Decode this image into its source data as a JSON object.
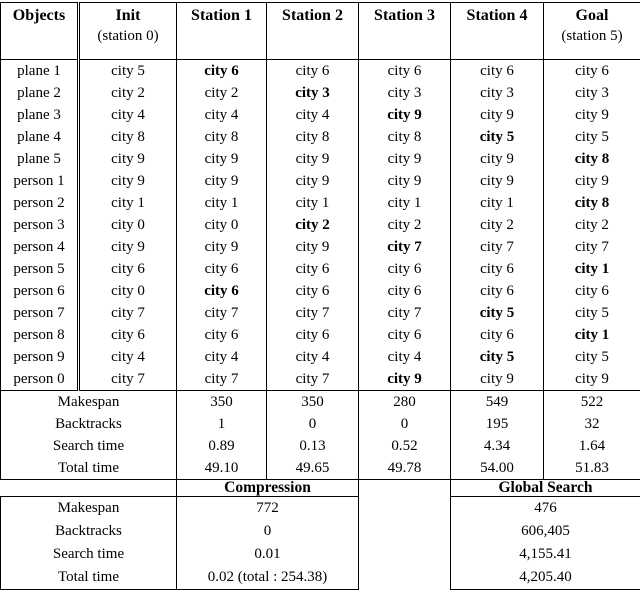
{
  "page": {
    "background": "#ffffff",
    "line_color": "#000000",
    "text_color": "#000000"
  },
  "main_table": {
    "header": {
      "columns": [
        {
          "label": "Objects",
          "sub": ""
        },
        {
          "label": "Init",
          "sub": "(station 0)"
        },
        {
          "label": "Station 1",
          "sub": ""
        },
        {
          "label": "Station 2",
          "sub": ""
        },
        {
          "label": "Station 3",
          "sub": ""
        },
        {
          "label": "Station 4",
          "sub": ""
        },
        {
          "label": "Goal",
          "sub": "(station 5)"
        }
      ]
    },
    "object_rows": [
      {
        "object": "plane 1",
        "cells": [
          "city 5",
          "city 6",
          "city 6",
          "city 6",
          "city 6",
          "city 6"
        ],
        "bold": [
          1
        ]
      },
      {
        "object": "plane 2",
        "cells": [
          "city 2",
          "city 2",
          "city 3",
          "city 3",
          "city 3",
          "city 3"
        ],
        "bold": [
          2
        ]
      },
      {
        "object": "plane 3",
        "cells": [
          "city 4",
          "city 4",
          "city 4",
          "city 9",
          "city 9",
          "city 9"
        ],
        "bold": [
          3
        ]
      },
      {
        "object": "plane 4",
        "cells": [
          "city 8",
          "city 8",
          "city 8",
          "city 8",
          "city 5",
          "city 5"
        ],
        "bold": [
          4
        ]
      },
      {
        "object": "plane 5",
        "cells": [
          "city 9",
          "city 9",
          "city 9",
          "city 9",
          "city 9",
          "city 8"
        ],
        "bold": [
          5
        ]
      },
      {
        "object": "person 1",
        "cells": [
          "city 9",
          "city 9",
          "city 9",
          "city 9",
          "city 9",
          "city 9"
        ],
        "bold": []
      },
      {
        "object": "person 2",
        "cells": [
          "city 1",
          "city 1",
          "city 1",
          "city 1",
          "city 1",
          "city 8"
        ],
        "bold": [
          5
        ]
      },
      {
        "object": "person 3",
        "cells": [
          "city 0",
          "city 0",
          "city 2",
          "city 2",
          "city 2",
          "city 2"
        ],
        "bold": [
          2
        ]
      },
      {
        "object": "person 4",
        "cells": [
          "city 9",
          "city 9",
          "city 9",
          "city 7",
          "city 7",
          "city 7"
        ],
        "bold": [
          3
        ]
      },
      {
        "object": "person 5",
        "cells": [
          "city 6",
          "city 6",
          "city 6",
          "city 6",
          "city 6",
          "city 1"
        ],
        "bold": [
          5
        ]
      },
      {
        "object": "person 6",
        "cells": [
          "city 0",
          "city 6",
          "city 6",
          "city 6",
          "city 6",
          "city 6"
        ],
        "bold": [
          1
        ]
      },
      {
        "object": "person 7",
        "cells": [
          "city 7",
          "city 7",
          "city 7",
          "city 7",
          "city 5",
          "city 5"
        ],
        "bold": [
          4
        ]
      },
      {
        "object": "person 8",
        "cells": [
          "city 6",
          "city 6",
          "city 6",
          "city 6",
          "city 6",
          "city 1"
        ],
        "bold": [
          5
        ]
      },
      {
        "object": "person 9",
        "cells": [
          "city 4",
          "city 4",
          "city 4",
          "city 4",
          "city 5",
          "city 5"
        ],
        "bold": [
          4
        ]
      },
      {
        "object": "person 0",
        "cells": [
          "city 7",
          "city 7",
          "city 7",
          "city 9",
          "city 9",
          "city 9"
        ],
        "bold": [
          3
        ]
      }
    ],
    "summary_rows": [
      {
        "label": "Makespan",
        "values": [
          "350",
          "350",
          "280",
          "549",
          "522"
        ]
      },
      {
        "label": "Backtracks",
        "values": [
          "1",
          "0",
          "0",
          "195",
          "32"
        ]
      },
      {
        "label": "Search time",
        "values": [
          "0.89",
          "0.13",
          "0.52",
          "4.34",
          "1.64"
        ]
      },
      {
        "label": "Total time",
        "values": [
          "49.10",
          "49.65",
          "49.78",
          "54.00",
          "51.83"
        ]
      }
    ]
  },
  "bottom_table": {
    "compression_header": "Compression",
    "global_search_header": "Global Search",
    "rows": [
      {
        "label": "Makespan",
        "compression": "772",
        "global_search": "476"
      },
      {
        "label": "Backtracks",
        "compression": "0",
        "global_search": "606,405"
      },
      {
        "label": "Search time",
        "compression": "0.01",
        "global_search": "4,155.41"
      },
      {
        "label": "Total time",
        "compression": "0.02 (total : 254.38)",
        "global_search": "4,205.40"
      }
    ]
  }
}
